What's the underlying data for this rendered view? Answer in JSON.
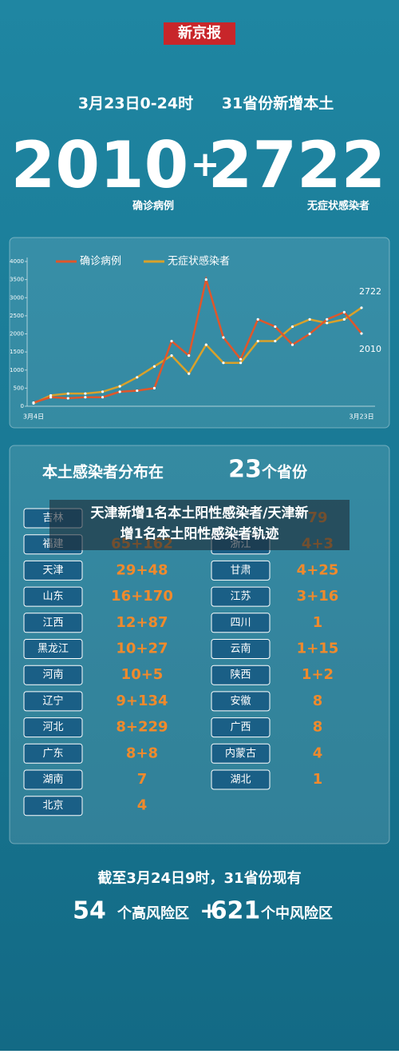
{
  "header": {
    "logo": "新京报",
    "date": "3月23日0-24时",
    "subtitle": "31省份新增本土",
    "confirmed": "2010",
    "plus": "+",
    "asymptomatic": "2722",
    "confirmed_label": "确诊病例",
    "asymptomatic_label": "无症状感染者"
  },
  "chart_data": {
    "type": "line",
    "categories": [
      "3月4日",
      null,
      null,
      null,
      null,
      null,
      null,
      null,
      null,
      null,
      null,
      null,
      null,
      null,
      null,
      null,
      null,
      null,
      null,
      "3月23日"
    ],
    "series": [
      {
        "name": "确诊病例",
        "color": "#e0562a",
        "values": [
          100,
          250,
          220,
          250,
          250,
          400,
          430,
          500,
          1800,
          1400,
          3500,
          1900,
          1300,
          2400,
          2200,
          1700,
          2000,
          2400,
          2600,
          2010
        ]
      },
      {
        "name": "无症状感染者",
        "color": "#d9a12a",
        "values": [
          80,
          300,
          350,
          350,
          400,
          550,
          800,
          1100,
          1400,
          900,
          1700,
          1200,
          1200,
          1800,
          1800,
          2200,
          2400,
          2300,
          2400,
          2722
        ]
      }
    ],
    "ylim": [
      0,
      4000
    ],
    "yticks": [
      0,
      500,
      1000,
      1500,
      2000,
      2500,
      3000,
      3500,
      4000
    ],
    "annotations": [
      "2722",
      "2010"
    ],
    "legend": "top",
    "grid": false
  },
  "table": {
    "title_pre": "本土感染者分布在",
    "title_num": "23",
    "title_post": "个省份",
    "rows": [
      [
        {
          "name": "吉林"
        },
        {
          "value": "79"
        }
      ],
      [
        {
          "name": "福建",
          "value": "65+162"
        },
        {
          "name": "浙江",
          "value": "4+3"
        }
      ],
      [
        {
          "name": "天津",
          "value": "29+48"
        },
        {
          "name": "甘肃",
          "value": "4+25"
        }
      ],
      [
        {
          "name": "山东",
          "value": "16+170"
        },
        {
          "name": "江苏",
          "value": "3+16"
        }
      ],
      [
        {
          "name": "江西",
          "value": "12+87"
        },
        {
          "name": "四川",
          "value": "1"
        }
      ],
      [
        {
          "name": "黑龙江",
          "value": "10+27"
        },
        {
          "name": "云南",
          "value": "1+15"
        }
      ],
      [
        {
          "name": "河南",
          "value": "10+5"
        },
        {
          "name": "陕西",
          "value": "1+2"
        }
      ],
      [
        {
          "name": "辽宁",
          "value": "9+134"
        },
        {
          "name": "安徽",
          "value": "8"
        }
      ],
      [
        {
          "name": "河北",
          "value": "8+229"
        },
        {
          "name": "广西",
          "value": "8"
        }
      ],
      [
        {
          "name": "广东",
          "value": "8+8"
        },
        {
          "name": "内蒙古",
          "value": "4"
        }
      ],
      [
        {
          "name": "湖南",
          "value": "7"
        },
        {
          "name": "湖北",
          "value": "1"
        }
      ],
      [
        {
          "name": "北京",
          "value": "4"
        }
      ]
    ]
  },
  "overlay": {
    "caption_line1": "天津新增1名本土阳性感染者/天津新",
    "caption_line2": "增1名本土阳性感染者轨迹"
  },
  "footer": {
    "line1": "截至3月24日9时，31省份现有",
    "high_num": "54",
    "high_label": "个高风险区",
    "plus": "+",
    "mid_num": "621",
    "mid_label": "个中风险区"
  }
}
